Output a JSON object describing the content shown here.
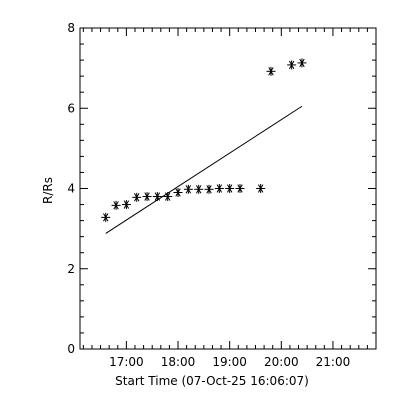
{
  "chart_data": {
    "type": "scatter",
    "title": "",
    "xlabel": "Start Time (07-Oct-25 16:06:07)",
    "ylabel": "R/Rs",
    "xlim": [
      "16:06:07",
      "21:50:00"
    ],
    "ylim": [
      0,
      8
    ],
    "x_ticks": [
      "17:00",
      "18:00",
      "19:00",
      "20:00",
      "21:00"
    ],
    "y_ticks": [
      "0",
      "2",
      "4",
      "6",
      "8"
    ],
    "grid": false,
    "legend": "none",
    "series": [
      {
        "marker": "asterisk",
        "x": [
          "16:36",
          "16:48",
          "17:00",
          "17:12",
          "17:24",
          "17:36",
          "17:48",
          "18:00",
          "18:12",
          "18:24",
          "18:36",
          "18:48",
          "19:00",
          "19:12",
          "19:36",
          "19:48",
          "20:12",
          "20:24"
        ],
        "y": [
          3.28,
          3.58,
          3.6,
          3.78,
          3.8,
          3.8,
          3.8,
          3.9,
          3.98,
          3.98,
          3.98,
          4.0,
          4.0,
          4.0,
          4.0,
          6.92,
          7.08,
          7.13
        ]
      }
    ],
    "fit_line": {
      "x": [
        "16:36",
        "20:24"
      ],
      "y": [
        2.88,
        6.05
      ]
    }
  }
}
